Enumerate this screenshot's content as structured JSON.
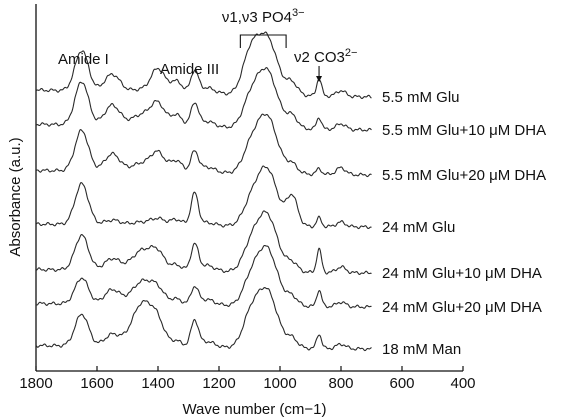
{
  "chart_data": {
    "type": "line",
    "xlabel": "Wave number (cm−1)",
    "ylabel": "Absorbance (a.u.)",
    "xlim": [
      1800,
      400
    ],
    "x_ticks": [
      1800,
      1600,
      1400,
      1200,
      1000,
      800,
      600,
      400
    ],
    "x_range_plotted": [
      1800,
      700
    ],
    "annotations": {
      "amide1": "Amide I",
      "amide3": "Amide III",
      "po4": {
        "base": "ν1,ν3 PO4",
        "sup": "3−",
        "range": [
          1130,
          980
        ]
      },
      "co3": {
        "base": "ν2 CO3",
        "sup": "2−",
        "x": 872
      }
    },
    "common_features": [
      {
        "center": 1650,
        "width": 22
      },
      {
        "center": 1550,
        "width": 25
      },
      {
        "center": 1450,
        "width": 35
      },
      {
        "center": 1400,
        "width": 22
      },
      {
        "center": 1340,
        "width": 20
      },
      {
        "center": 1280,
        "width": 12
      },
      {
        "center": 1240,
        "width": 25
      },
      {
        "center": 1100,
        "width": 25
      },
      {
        "center": 1045,
        "width": 35
      },
      {
        "center": 960,
        "width": 18
      },
      {
        "center": 872,
        "width": 8
      },
      {
        "center": 800,
        "width": 15
      }
    ],
    "series": [
      {
        "name": "5.5 mM Glu",
        "baseline": 0.12,
        "amp": [
          0.7,
          0.3,
          0.05,
          0.4,
          0.2,
          0.38,
          0.1,
          0.55,
          1.0,
          0.2,
          0.3,
          0.1
        ]
      },
      {
        "name": "5.5 mM Glu+10 μM DHA",
        "baseline": 0.1,
        "amp": [
          0.75,
          0.35,
          0.2,
          0.35,
          0.2,
          0.4,
          0.1,
          0.35,
          1.0,
          0.2,
          0.2,
          0.1
        ]
      },
      {
        "name": "5.5 mM Glu+20 μM DHA",
        "baseline": 0.08,
        "amp": [
          0.7,
          0.3,
          0.15,
          0.3,
          0.2,
          0.35,
          0.1,
          0.3,
          1.0,
          0.15,
          0.1,
          0.12
        ]
      },
      {
        "name": "24 mM Glu",
        "baseline": 0.05,
        "amp": [
          0.7,
          0.08,
          0.05,
          0.1,
          0.1,
          0.55,
          0.05,
          0.25,
          1.0,
          0.5,
          0.15,
          0.08
        ]
      },
      {
        "name": "24 mM Glu+10 μM DHA",
        "baseline": 0.06,
        "amp": [
          0.6,
          0.2,
          0.35,
          0.25,
          0.1,
          0.45,
          0.1,
          0.3,
          1.0,
          0.15,
          0.4,
          0.1
        ]
      },
      {
        "name": "24 mM Glu+20 μM DHA",
        "baseline": 0.06,
        "amp": [
          0.45,
          0.25,
          0.4,
          0.2,
          0.1,
          0.3,
          0.1,
          0.3,
          1.0,
          0.15,
          0.28,
          0.08
        ]
      },
      {
        "name": "18 mM Man",
        "baseline": 0.06,
        "amp": [
          0.55,
          0.2,
          0.75,
          0.3,
          0.1,
          0.45,
          0.1,
          0.4,
          1.0,
          0.15,
          0.25,
          0.08
        ]
      }
    ]
  }
}
